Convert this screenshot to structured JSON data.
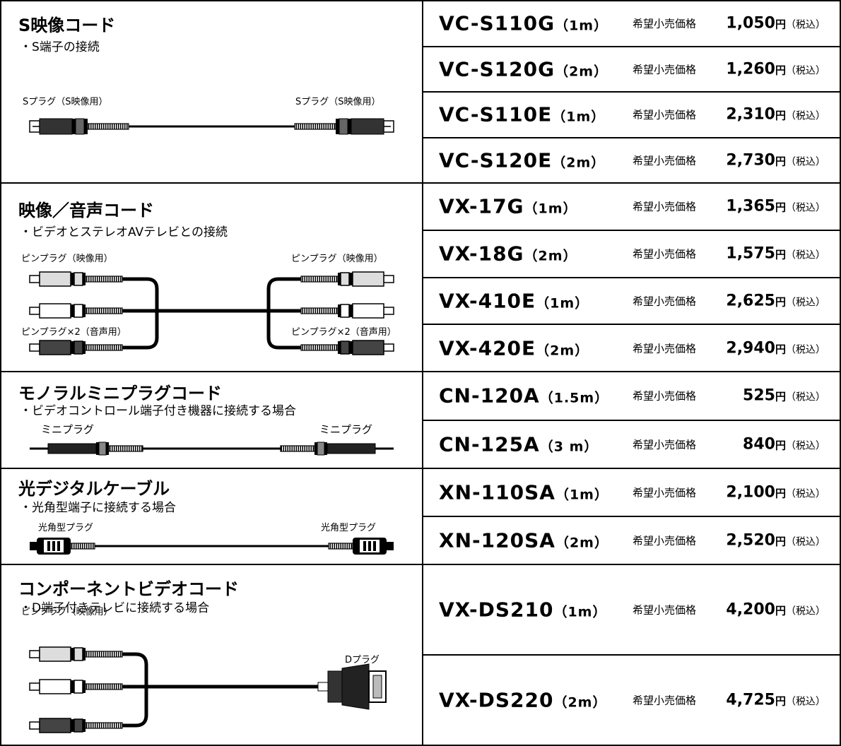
{
  "groups": [
    {
      "title": "S映像コード",
      "description": "・S端子の接続",
      "plugs": [
        "Sプラグ（S映像用）",
        "Sプラグ（S映像用）"
      ],
      "products": [
        {
          "model": "VC-S110G",
          "length": "（1m）",
          "price_label": "希望小売価格",
          "price": "1,050",
          "unit": "円",
          "tax": "（税込）"
        },
        {
          "model": "VC-S120G",
          "length": "（2m）",
          "price_label": "希望小売価格",
          "price": "1,260",
          "unit": "円",
          "tax": "（税込）"
        },
        {
          "model": "VC-S110E",
          "length": "（1m）",
          "price_label": "希望小売価格",
          "price": "2,310",
          "unit": "円",
          "tax": "（税込）"
        },
        {
          "model": "VC-S120E",
          "length": "（2m）",
          "price_label": "希望小売価格",
          "price": "2,730",
          "unit": "円",
          "tax": "（税込）"
        }
      ]
    },
    {
      "title": "映像／音声コード",
      "description": "・ビデオとステレオAVテレビとの接続",
      "plugs": [
        "ピンプラグ（映像用）",
        "ピンプラグ（映像用）",
        "ピンプラグ×2（音声用）",
        "ピンプラグ×2（音声用）"
      ],
      "products": [
        {
          "model": "VX-17G",
          "length": "（1m）",
          "price_label": "希望小売価格",
          "price": "1,365",
          "unit": "円",
          "tax": "（税込）"
        },
        {
          "model": "VX-18G",
          "length": "（2m）",
          "price_label": "希望小売価格",
          "price": "1,575",
          "unit": "円",
          "tax": "（税込）"
        },
        {
          "model": "VX-410E",
          "length": "（1m）",
          "price_label": "希望小売価格",
          "price": "2,625",
          "unit": "円",
          "tax": "（税込）"
        },
        {
          "model": "VX-420E",
          "length": "（2m）",
          "price_label": "希望小売価格",
          "price": "2,940",
          "unit": "円",
          "tax": "（税込）"
        }
      ]
    },
    {
      "title": "モノラルミニプラグコード",
      "description": "・ビデオコントロール端子付き機器に接続する場合",
      "plugs": [
        "ミニプラグ",
        "ミニプラグ"
      ],
      "products": [
        {
          "model": "CN-120A",
          "length": "（1.5m）",
          "price_label": "希望小売価格",
          "price": "525",
          "unit": "円",
          "tax": "（税込）"
        },
        {
          "model": "CN-125A",
          "length": "（3 m）",
          "price_label": "希望小売価格",
          "price": "840",
          "unit": "円",
          "tax": "（税込）"
        }
      ]
    },
    {
      "title": "光デジタルケーブル",
      "description": "・光角型端子に接続する場合",
      "plugs": [
        "光角型プラグ",
        "光角型プラグ"
      ],
      "products": [
        {
          "model": "XN-110SA",
          "length": "（1m）",
          "price_label": "希望小売価格",
          "price": "2,100",
          "unit": "円",
          "tax": "（税込）"
        },
        {
          "model": "XN-120SA",
          "length": "（2m）",
          "price_label": "希望小売価格",
          "price": "2,520",
          "unit": "円",
          "tax": "（税込）"
        }
      ]
    },
    {
      "title": "コンポーネントビデオコード",
      "description": "・D端子付きテレビに接続する場合",
      "plugs": [
        "ピンプラグ（映像用）",
        "Dプラグ"
      ],
      "products": [
        {
          "model": "VX-DS210",
          "length": "（1m）",
          "price_label": "希望小売価格",
          "price": "4,200",
          "unit": "円",
          "tax": "（税込）"
        },
        {
          "model": "VX-DS220",
          "length": "（2m）",
          "price_label": "希望小売価格",
          "price": "4,725",
          "unit": "円",
          "tax": "（税込）"
        }
      ]
    }
  ]
}
